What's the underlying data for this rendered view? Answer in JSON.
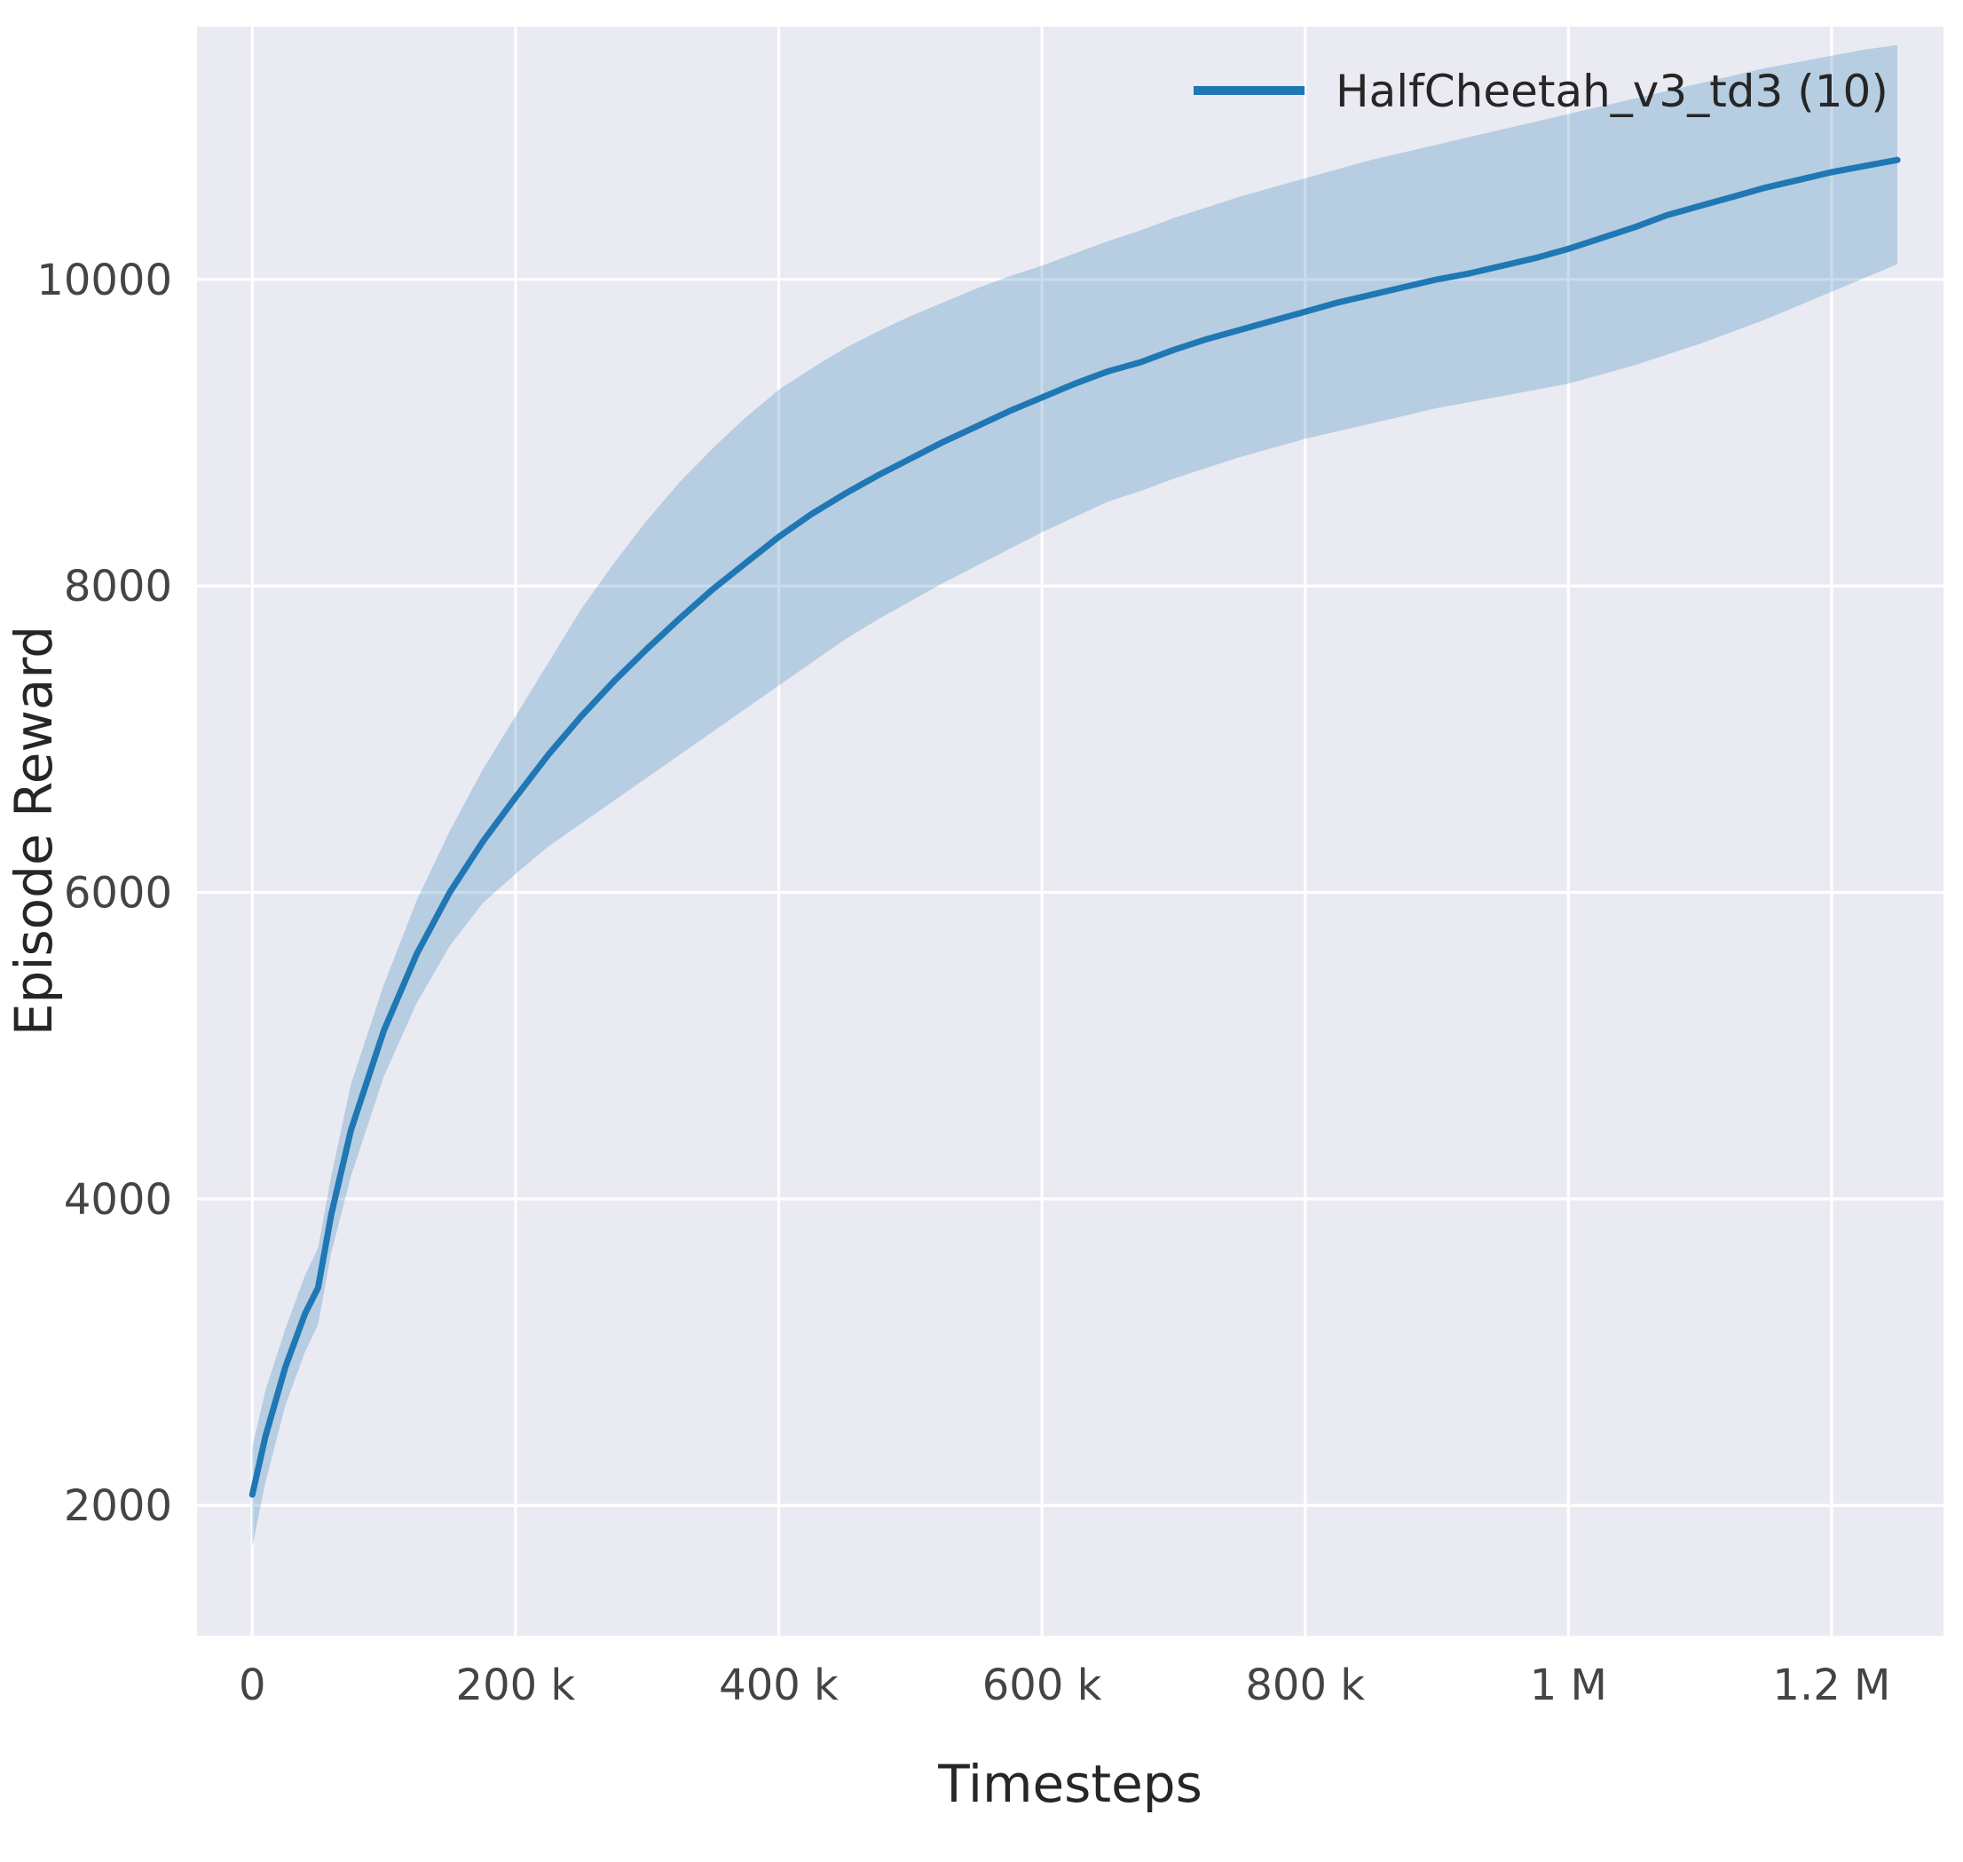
{
  "figure": {
    "background": "#ffffff"
  },
  "chart_data": {
    "type": "line",
    "title": "",
    "xlabel": "Timesteps",
    "ylabel": "Episode Reward",
    "grid": true,
    "legend": {
      "position": "upper right",
      "entries": [
        {
          "label": "HalfCheetah_v3_td3 (10)",
          "color": "#1f77b4"
        }
      ]
    },
    "xlim": [
      -42000,
      1285000
    ],
    "ylim": [
      1150,
      11650
    ],
    "x_ticks": [
      {
        "value": 0,
        "label": "0"
      },
      {
        "value": 200000,
        "label": "200 k"
      },
      {
        "value": 400000,
        "label": "400 k"
      },
      {
        "value": 600000,
        "label": "600 k"
      },
      {
        "value": 800000,
        "label": "800 k"
      },
      {
        "value": 1000000,
        "label": "1 M"
      },
      {
        "value": 1200000,
        "label": "1.2 M"
      }
    ],
    "y_ticks": [
      {
        "value": 2000,
        "label": "2000"
      },
      {
        "value": 4000,
        "label": "4000"
      },
      {
        "value": 6000,
        "label": "6000"
      },
      {
        "value": 8000,
        "label": "8000"
      },
      {
        "value": 10000,
        "label": "10000"
      }
    ],
    "colors": {
      "plot_background": "#eaeaf2",
      "grid": "#ffffff",
      "line": "#1f77b4",
      "band": "#1f77b4",
      "band_opacity": 0.25,
      "axis_text": "#262626",
      "tick_text": "#444444"
    },
    "series": [
      {
        "name": "HalfCheetah_v3_td3 (10)",
        "x": [
          0,
          10000,
          25000,
          40000,
          50000,
          60000,
          75000,
          100000,
          125000,
          150000,
          175000,
          200000,
          225000,
          250000,
          275000,
          300000,
          325000,
          350000,
          375000,
          400000,
          425000,
          450000,
          475000,
          500000,
          525000,
          550000,
          575000,
          600000,
          625000,
          650000,
          675000,
          700000,
          725000,
          750000,
          775000,
          800000,
          825000,
          850000,
          875000,
          900000,
          925000,
          950000,
          975000,
          1000000,
          1025000,
          1050000,
          1075000,
          1100000,
          1125000,
          1150000,
          1175000,
          1200000,
          1225000,
          1250000
        ],
        "mean": [
          2070,
          2450,
          2900,
          3250,
          3420,
          3900,
          4450,
          5100,
          5600,
          6000,
          6330,
          6620,
          6900,
          7150,
          7380,
          7590,
          7790,
          7980,
          8150,
          8320,
          8470,
          8600,
          8720,
          8830,
          8940,
          9040,
          9140,
          9230,
          9320,
          9400,
          9460,
          9540,
          9610,
          9670,
          9730,
          9790,
          9850,
          9900,
          9950,
          10000,
          10040,
          10090,
          10140,
          10200,
          10270,
          10340,
          10420,
          10480,
          10540,
          10600,
          10650,
          10700,
          10740,
          10780
        ],
        "band_low": [
          1730,
          2150,
          2650,
          3000,
          3180,
          3650,
          4150,
          4800,
          5280,
          5650,
          5930,
          6120,
          6300,
          6450,
          6600,
          6750,
          6900,
          7050,
          7200,
          7350,
          7500,
          7650,
          7780,
          7900,
          8020,
          8130,
          8240,
          8350,
          8450,
          8550,
          8620,
          8700,
          8770,
          8840,
          8900,
          8960,
          9010,
          9060,
          9110,
          9160,
          9200,
          9240,
          9280,
          9320,
          9380,
          9440,
          9510,
          9580,
          9660,
          9740,
          9830,
          9920,
          10010,
          10100
        ],
        "band_high": [
          2380,
          2750,
          3150,
          3500,
          3680,
          4150,
          4750,
          5400,
          5950,
          6400,
          6800,
          7150,
          7500,
          7850,
          8150,
          8430,
          8680,
          8900,
          9100,
          9280,
          9420,
          9550,
          9660,
          9760,
          9850,
          9940,
          10020,
          10090,
          10170,
          10250,
          10320,
          10400,
          10470,
          10540,
          10600,
          10660,
          10720,
          10780,
          10830,
          10880,
          10930,
          10980,
          11030,
          11080,
          11130,
          11180,
          11230,
          11280,
          11330,
          11380,
          11420,
          11460,
          11500,
          11530
        ]
      }
    ]
  }
}
